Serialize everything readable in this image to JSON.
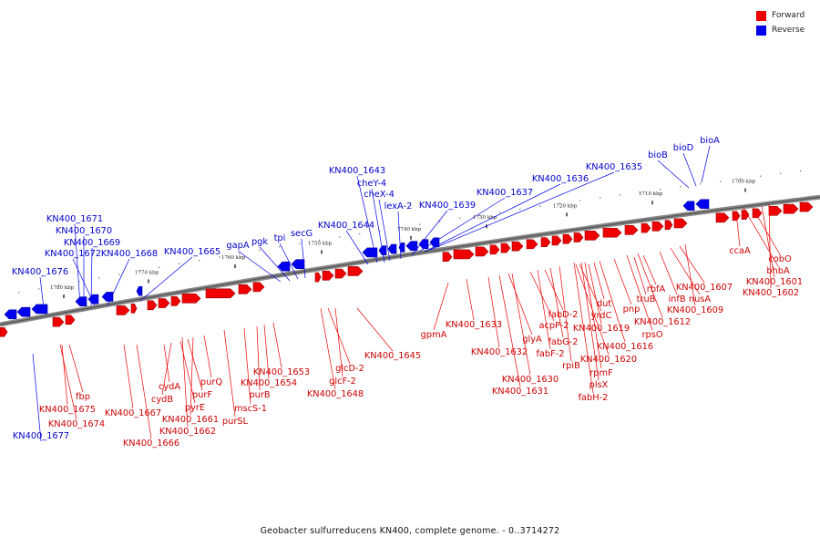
{
  "legend": {
    "forward_label": "Forward",
    "reverse_label": "Reverse",
    "forward_color": "#ee0000",
    "reverse_color": "#0000ee"
  },
  "caption": "Geobacter sulfurreducens KN400, complete genome. - 0..3714272",
  "ticks": [
    "1700 kbp",
    "1710 kbp",
    "1720 kbp",
    "1730 kbp",
    "1740 kbp",
    "1750 kbp",
    "1760 kbp",
    "1770 kbp",
    "1780 kbp"
  ],
  "reverse_genes": [
    "KN400_1676",
    "KN400_1671",
    "KN400_1670",
    "KN400_1669",
    "KN400_1672",
    "KN400_1668",
    "KN400_1665",
    "gapA",
    "pgk",
    "tpi",
    "secG",
    "KN400_1644",
    "KN400_1643",
    "cheY-4",
    "cheX-4",
    "lexA-2",
    "KN400_1639",
    "KN400_1637",
    "KN400_1636",
    "KN400_1635",
    "bioB",
    "bioD",
    "bioA",
    "KN400_1677"
  ],
  "forward_genes": [
    "fbp",
    "KN400_1675",
    "KN400_1674",
    "KN400_1667",
    "KN400_1666",
    "cydA",
    "cydB",
    "pyrE",
    "purF",
    "purQ",
    "KN400_1661",
    "KN400_1662",
    "purSL",
    "mscS-1",
    "purB",
    "KN400_1654",
    "KN400_1653",
    "glcD-2",
    "glcF-2",
    "KN400_1648",
    "KN400_1645",
    "gpmA",
    "KN400_1633",
    "KN400_1632",
    "glyA",
    "KN400_1630",
    "KN400_1631",
    "acpP-2",
    "fabD-2",
    "fabG-2",
    "fabF-2",
    "rpiB",
    "dut",
    "yrdC",
    "KN400_1619",
    "KN400_1620",
    "rpmF",
    "plsX",
    "fabH-2",
    "pnp",
    "rbfA",
    "truB",
    "infB",
    "nusA",
    "KN400_1607",
    "KN400_1616",
    "KN400_1612",
    "rpsO",
    "KN400_1609",
    "ccaA",
    "cobO",
    "bhbA",
    "KN400_1601",
    "KN400_1602"
  ]
}
